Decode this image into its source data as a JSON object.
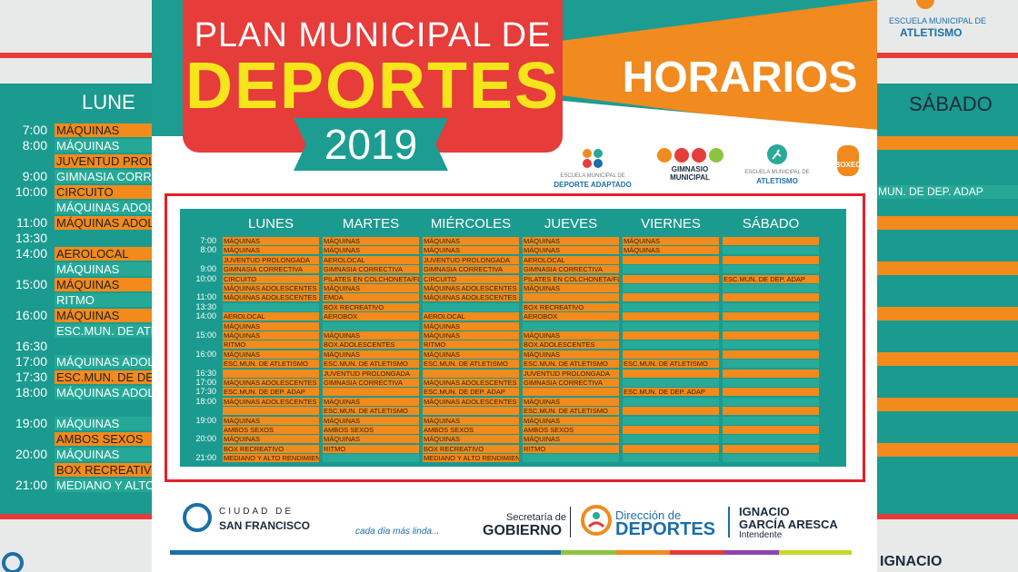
{
  "poster": {
    "title_line1": "PLAN MUNICIPAL DE",
    "title_line2": "DEPORTES",
    "year": "2019",
    "subtitle": "HORARIOS"
  },
  "logos": {
    "adaptado": "DEPORTE ADAPTADO",
    "adaptado_small": "ESCUELA MUNICIPAL DE",
    "gimnasio": "GIMNASIO MUNICIPAL",
    "atletismo_small": "ESCUELA MUNICIPAL DE",
    "atletismo": "ATLETISMO",
    "boxeo": "BOXEO"
  },
  "days": [
    "LUNES",
    "MARTES",
    "MIÉRCOLES",
    "JUEVES",
    "VIERNES",
    "SÁBADO"
  ],
  "rows": [
    {
      "time": "7:00",
      "c": [
        "MÁQUINAS",
        "MÁQUINAS",
        "MÁQUINAS",
        "MÁQUINAS",
        "MÁQUINAS",
        ""
      ]
    },
    {
      "time": "8:00",
      "c": [
        "MÁQUINAS",
        "MÁQUINAS",
        "MÁQUINAS",
        "MÁQUINAS",
        "MÁQUINAS",
        ""
      ]
    },
    {
      "time": "",
      "c": [
        "JUVENTUD PROLONGADA",
        "AEROLOCAL",
        "JUVENTUD PROLONGADA",
        "AEROLOCAL",
        "",
        ""
      ]
    },
    {
      "time": "9:00",
      "c": [
        "GIMNASIA CORRECTIVA",
        "GIMNASIA CORRECTIVA",
        "GIMNASIA CORRECTIVA",
        "GIMNASIA CORRECTIVA",
        "",
        ""
      ]
    },
    {
      "time": "10:00",
      "c": [
        "CIRCUITO",
        "PILATES EN COLCHONETA/FLEX",
        "CIRCUITO",
        "PILATES EN COLCHONETA/FLEX",
        "",
        "ESC.MUN. DE DEP. ADAP"
      ]
    },
    {
      "time": "",
      "c": [
        "MÁQUINAS ADOLESCENTES",
        "MÁQUINAS",
        "MÁQUINAS ADOLESCENTES",
        "MÁQUINAS",
        "",
        ""
      ]
    },
    {
      "time": "11:00",
      "c": [
        "MÁQUINAS ADOLESCENTES",
        "EMDA",
        "MÁQUINAS ADOLESCENTES",
        "",
        "",
        ""
      ]
    },
    {
      "time": "13:30",
      "c": [
        "",
        "BOX RECREATIVO",
        "",
        "BOX RECREATIVO",
        "",
        ""
      ]
    },
    {
      "time": "14:00",
      "c": [
        "AEROLOCAL",
        "AEROBOX",
        "AEROLOCAL",
        "AEROBOX",
        "",
        ""
      ]
    },
    {
      "time": "",
      "c": [
        "MÁQUINAS",
        "",
        "MÁQUINAS",
        "",
        "",
        ""
      ]
    },
    {
      "time": "15:00",
      "c": [
        "MÁQUINAS",
        "MÁQUINAS",
        "MÁQUINAS",
        "MÁQUINAS",
        "",
        ""
      ]
    },
    {
      "time": "",
      "c": [
        "RITMO",
        "BOX ADOLESCENTES",
        "RITMO",
        "BOX ADOLESCENTES",
        "",
        ""
      ]
    },
    {
      "time": "16:00",
      "c": [
        "MÁQUINAS",
        "MÁQUINAS",
        "MÁQUINAS",
        "MÁQUINAS",
        "",
        ""
      ]
    },
    {
      "time": "",
      "c": [
        "ESC.MUN. DE ATLETISMO",
        "ESC.MUN. DE ATLETISMO",
        "ESC.MUN. DE ATLETISMO",
        "ESC.MUN. DE ATLETISMO",
        "ESC.MUN. DE ATLETISMO",
        ""
      ]
    },
    {
      "time": "16:30",
      "c": [
        "",
        "JUVENTUD PROLONGADA",
        "",
        "JUVENTUD PROLONGADA",
        "",
        ""
      ]
    },
    {
      "time": "17:00",
      "c": [
        "MÁQUINAS ADOLESCENTES",
        "GIMNASIA CORRECTIVA",
        "MÁQUINAS ADOLESCENTES",
        "GIMNASIA CORRECTIVA",
        "",
        ""
      ]
    },
    {
      "time": "17:30",
      "c": [
        "ESC.MUN. DE DEP. ADAP",
        "",
        "ESC.MUN. DE DEP. ADAP",
        "",
        "ESC.MUN. DE DEP. ADAP",
        ""
      ]
    },
    {
      "time": "18:00",
      "c": [
        "MÁQUINAS ADOLESCENTES",
        "MÁQUINAS",
        "MÁQUINAS ADOLESCENTES",
        "MÁQUINAS",
        "",
        ""
      ]
    },
    {
      "time": "",
      "c": [
        "",
        "ESC.MUN. DE ATLETISMO",
        "",
        "ESC.MUN. DE ATLETISMO",
        "",
        ""
      ]
    },
    {
      "time": "19:00",
      "c": [
        "MÁQUINAS",
        "MÁQUINAS",
        "MÁQUINAS",
        "MÁQUINAS",
        "",
        ""
      ]
    },
    {
      "time": "",
      "c": [
        "AMBOS SEXOS",
        "AMBOS SEXOS",
        "AMBOS SEXOS",
        "AMBOS SEXOS",
        "",
        ""
      ]
    },
    {
      "time": "20:00",
      "c": [
        "MÁQUINAS",
        "MÁQUINAS",
        "MÁQUINAS",
        "MÁQUINAS",
        "",
        ""
      ]
    },
    {
      "time": "",
      "c": [
        "BOX RECREATIVO",
        "RITMO",
        "BOX RECREATIVO",
        "RITMO",
        "",
        ""
      ]
    },
    {
      "time": "21:00",
      "c": [
        "MEDIANO Y ALTO RENDIMIENTO",
        "",
        "MEDIANO Y ALTO RENDIMIENTO",
        "",
        "",
        ""
      ]
    }
  ],
  "footer": {
    "city_top": "CIUDAD DE",
    "city_bottom": "SAN FRANCISCO",
    "slogan": "cada día más linda...",
    "sec_top": "Secretaría de",
    "sec_bottom": "GOBIERNO",
    "dir_top": "Dirección de",
    "dir_bottom": "DEPORTES",
    "name1": "IGNACIO",
    "name2": "GARCÍA ARESCA",
    "role": "Intendente"
  },
  "bg": {
    "left_day": "LUNE",
    "right_day": "SÁBADO",
    "right_logo_small": "ESCUELA MUNICIPAL DE",
    "right_logo": "ATLETISMO",
    "right_bottom": "IGNACIO",
    "right_row": "MUN. DE DEP. ADAP",
    "left_rows": [
      {
        "t": "7:00",
        "v": "MÁQUINAS"
      },
      {
        "t": "8:00",
        "v": "MÁQUINAS"
      },
      {
        "t": "",
        "v": "JUVENTUD PROLONGA"
      },
      {
        "t": "9:00",
        "v": "GIMNASIA CORRECTIV"
      },
      {
        "t": "10:00",
        "v": "CIRCUITO"
      },
      {
        "t": "",
        "v": "MÁQUINAS ADOLESC"
      },
      {
        "t": "11:00",
        "v": "MÁQUINAS ADOLESCE"
      },
      {
        "t": "13:30",
        "v": ""
      },
      {
        "t": "14:00",
        "v": "AEROLOCAL"
      },
      {
        "t": "",
        "v": "MÁQUINAS"
      },
      {
        "t": "15:00",
        "v": "MÁQUINAS"
      },
      {
        "t": "",
        "v": "RITMO"
      },
      {
        "t": "16:00",
        "v": "MÁQUINAS"
      },
      {
        "t": "",
        "v": "ESC.MUN. DE ATLETIS"
      },
      {
        "t": "16:30",
        "v": ""
      },
      {
        "t": "17:00",
        "v": "MÁQUINAS ADOLESCE"
      },
      {
        "t": "17:30",
        "v": "ESC.MUN. DE DEP. ADA"
      },
      {
        "t": "18:00",
        "v": "MÁQUINAS ADOLESCE"
      },
      {
        "t": "",
        "v": ""
      },
      {
        "t": "19:00",
        "v": "MÁQUINAS"
      },
      {
        "t": "",
        "v": "AMBOS SEXOS"
      },
      {
        "t": "20:00",
        "v": "MÁQUINAS"
      },
      {
        "t": "",
        "v": "BOX RECREATIVO"
      },
      {
        "t": "21:00",
        "v": "MEDIANO Y ALTO REN"
      }
    ]
  }
}
